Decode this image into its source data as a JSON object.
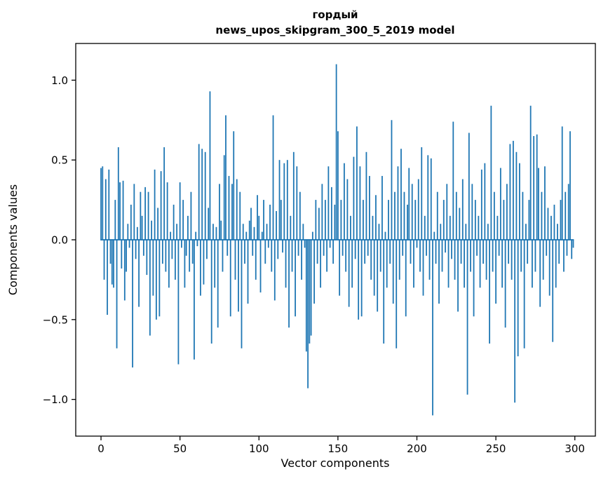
{
  "figure": {
    "background": "#ffffff"
  },
  "chart_data": {
    "type": "bar",
    "title": "гордый",
    "subtitle": "news_upos_skipgram_300_5_2019 model",
    "xlabel": "Vector components",
    "ylabel": "Components values",
    "bar_color": "#1f77b4",
    "spine_color": "#000000",
    "grid": false,
    "legend": "none",
    "xlim": [
      -16,
      313
    ],
    "ylim": [
      -1.23,
      1.23
    ],
    "x_ticks": [
      0,
      50,
      100,
      150,
      200,
      250,
      300
    ],
    "x_tick_labels": [
      "0",
      "50",
      "100",
      "150",
      "200",
      "250",
      "300"
    ],
    "y_ticks": [
      -1.0,
      -0.5,
      0.0,
      0.5,
      1.0
    ],
    "y_tick_labels": [
      "−1.0",
      "−0.5",
      "0.0",
      "0.5",
      "1.0"
    ],
    "n_components": 300,
    "values": [
      0.45,
      0.46,
      -0.25,
      0.38,
      -0.47,
      0.44,
      -0.15,
      -0.28,
      -0.3,
      0.25,
      -0.68,
      0.58,
      0.36,
      -0.18,
      0.37,
      -0.38,
      -0.2,
      0.1,
      -0.05,
      0.22,
      -0.8,
      0.35,
      -0.12,
      0.08,
      -0.42,
      0.3,
      0.15,
      -0.1,
      0.33,
      -0.22,
      0.3,
      -0.6,
      0.12,
      -0.35,
      0.44,
      -0.5,
      0.2,
      -0.48,
      0.43,
      -0.15,
      0.58,
      -0.2,
      0.36,
      -0.3,
      0.05,
      -0.12,
      0.22,
      -0.25,
      0.1,
      -0.78,
      0.36,
      -0.05,
      0.25,
      -0.3,
      -0.1,
      0.15,
      -0.2,
      0.3,
      -0.15,
      -0.75,
      0.05,
      -0.04,
      0.6,
      -0.35,
      0.57,
      -0.28,
      0.55,
      -0.12,
      0.2,
      0.93,
      -0.65,
      0.1,
      -0.3,
      0.08,
      -0.55,
      0.35,
      0.12,
      -0.2,
      0.53,
      0.78,
      -0.1,
      0.4,
      -0.48,
      0.35,
      0.68,
      -0.25,
      0.38,
      -0.45,
      0.3,
      -0.68,
      0.1,
      -0.15,
      0.05,
      -0.4,
      0.12,
      0.2,
      -0.1,
      0.08,
      -0.25,
      0.28,
      0.15,
      -0.33,
      0.05,
      0.25,
      -0.15,
      0.1,
      -0.05,
      0.22,
      -0.2,
      0.78,
      -0.38,
      0.18,
      -0.12,
      0.5,
      0.25,
      -0.08,
      0.48,
      -0.3,
      0.5,
      -0.55,
      0.15,
      -0.2,
      0.55,
      -0.48,
      0.46,
      -0.1,
      0.3,
      -0.25,
      0.1,
      -0.05,
      -0.7,
      -0.93,
      -0.65,
      -0.6,
      0.05,
      -0.4,
      0.25,
      -0.15,
      0.2,
      -0.3,
      0.35,
      -0.1,
      0.25,
      -0.2,
      0.46,
      -0.05,
      0.33,
      -0.15,
      0.22,
      1.1,
      0.68,
      -0.35,
      0.25,
      -0.1,
      0.48,
      -0.2,
      0.38,
      -0.42,
      0.15,
      -0.3,
      0.52,
      -0.12,
      0.71,
      -0.5,
      0.46,
      -0.48,
      0.25,
      -0.15,
      0.55,
      -0.1,
      0.4,
      -0.25,
      0.15,
      -0.35,
      0.28,
      -0.45,
      0.1,
      -0.2,
      0.4,
      -0.65,
      0.05,
      -0.3,
      0.25,
      -0.15,
      0.75,
      -0.4,
      0.3,
      -0.68,
      0.46,
      -0.25,
      0.57,
      -0.1,
      0.3,
      -0.48,
      0.22,
      0.45,
      -0.15,
      0.35,
      -0.3,
      0.25,
      -0.05,
      0.38,
      -0.2,
      0.58,
      -0.35,
      0.15,
      -0.1,
      0.53,
      -0.25,
      0.51,
      -1.1,
      0.05,
      -0.15,
      0.3,
      -0.4,
      0.1,
      -0.2,
      0.25,
      -0.08,
      0.35,
      -0.3,
      0.15,
      -0.12,
      0.74,
      -0.25,
      0.3,
      -0.45,
      0.2,
      -0.15,
      0.38,
      -0.3,
      0.1,
      -0.97,
      0.67,
      -0.2,
      0.35,
      -0.48,
      0.25,
      -0.1,
      0.15,
      -0.3,
      0.44,
      -0.15,
      0.48,
      -0.25,
      0.1,
      -0.65,
      0.84,
      -0.2,
      0.3,
      -0.4,
      0.15,
      -0.1,
      0.45,
      -0.3,
      0.25,
      -0.55,
      0.35,
      -0.15,
      0.6,
      -0.25,
      0.62,
      -1.02,
      0.55,
      -0.73,
      0.48,
      -0.2,
      0.3,
      -0.68,
      0.1,
      -0.15,
      0.25,
      0.84,
      -0.3,
      0.65,
      -0.2,
      0.66,
      0.45,
      -0.42,
      0.3,
      -0.25,
      0.46,
      -0.1,
      0.2,
      -0.35,
      0.15,
      -0.64,
      0.22,
      -0.3,
      0.1,
      -0.15,
      0.25,
      0.71,
      -0.2,
      0.3,
      -0.1,
      0.35,
      0.68,
      -0.12,
      -0.05
    ]
  }
}
